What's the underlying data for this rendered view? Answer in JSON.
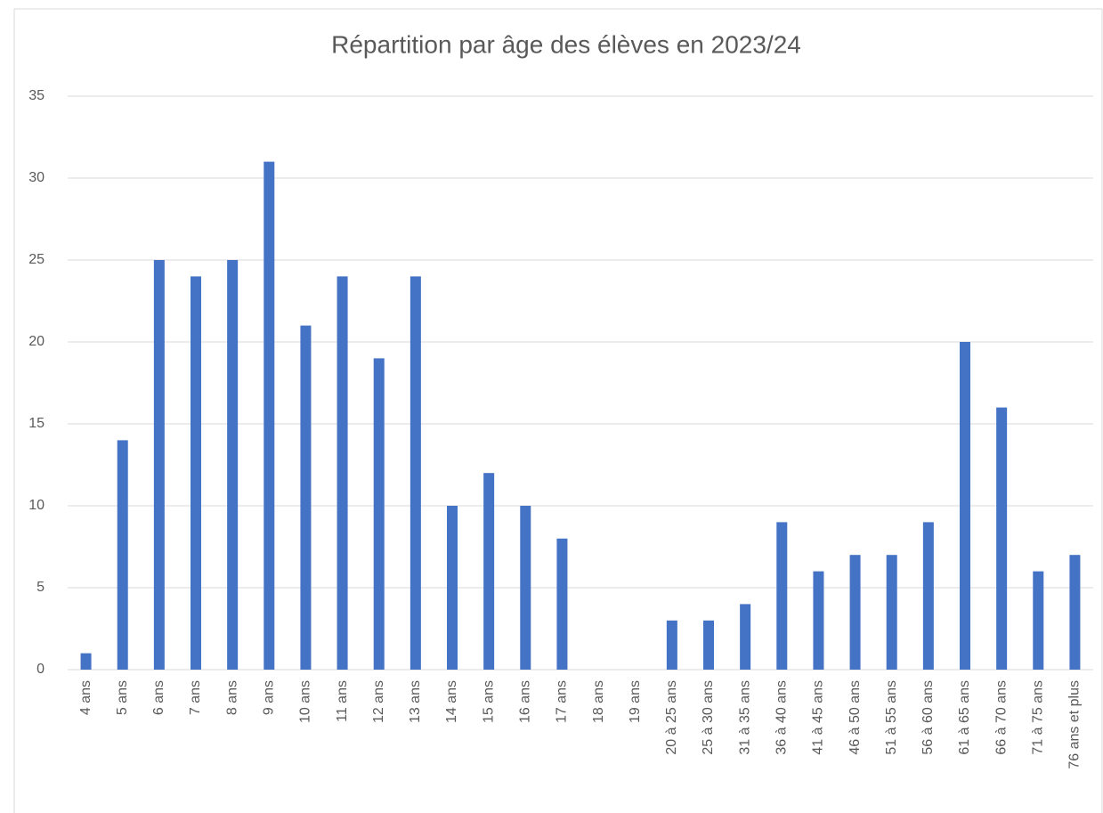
{
  "chart_data": {
    "type": "bar",
    "title": "Répartition par âge des élèves en 2023/24",
    "categories": [
      "4 ans",
      "5 ans",
      "6 ans",
      "7 ans",
      "8 ans",
      "9 ans",
      "10 ans",
      "11 ans",
      "12 ans",
      "13 ans",
      "14 ans",
      "15 ans",
      "16 ans",
      "17 ans",
      "18 ans",
      "19 ans",
      "20 à 25 ans",
      "25 à 30 ans",
      "31 à 35 ans",
      "36 à 40 ans",
      "41 à 45 ans",
      "46 à 50 ans",
      "51 à 55 ans",
      "56 à 60 ans",
      "61 à 65 ans",
      "66 à 70 ans",
      "71 à 75 ans",
      "76 ans et plus"
    ],
    "values": [
      1,
      14,
      25,
      24,
      25,
      31,
      21,
      24,
      19,
      24,
      10,
      12,
      10,
      8,
      0,
      0,
      3,
      3,
      4,
      9,
      6,
      7,
      7,
      9,
      20,
      16,
      6,
      7
    ],
    "color": "#4472c4",
    "ylim": [
      0,
      35
    ],
    "yticks": [
      0,
      5,
      10,
      15,
      20,
      25,
      30,
      35
    ],
    "grid": true
  }
}
